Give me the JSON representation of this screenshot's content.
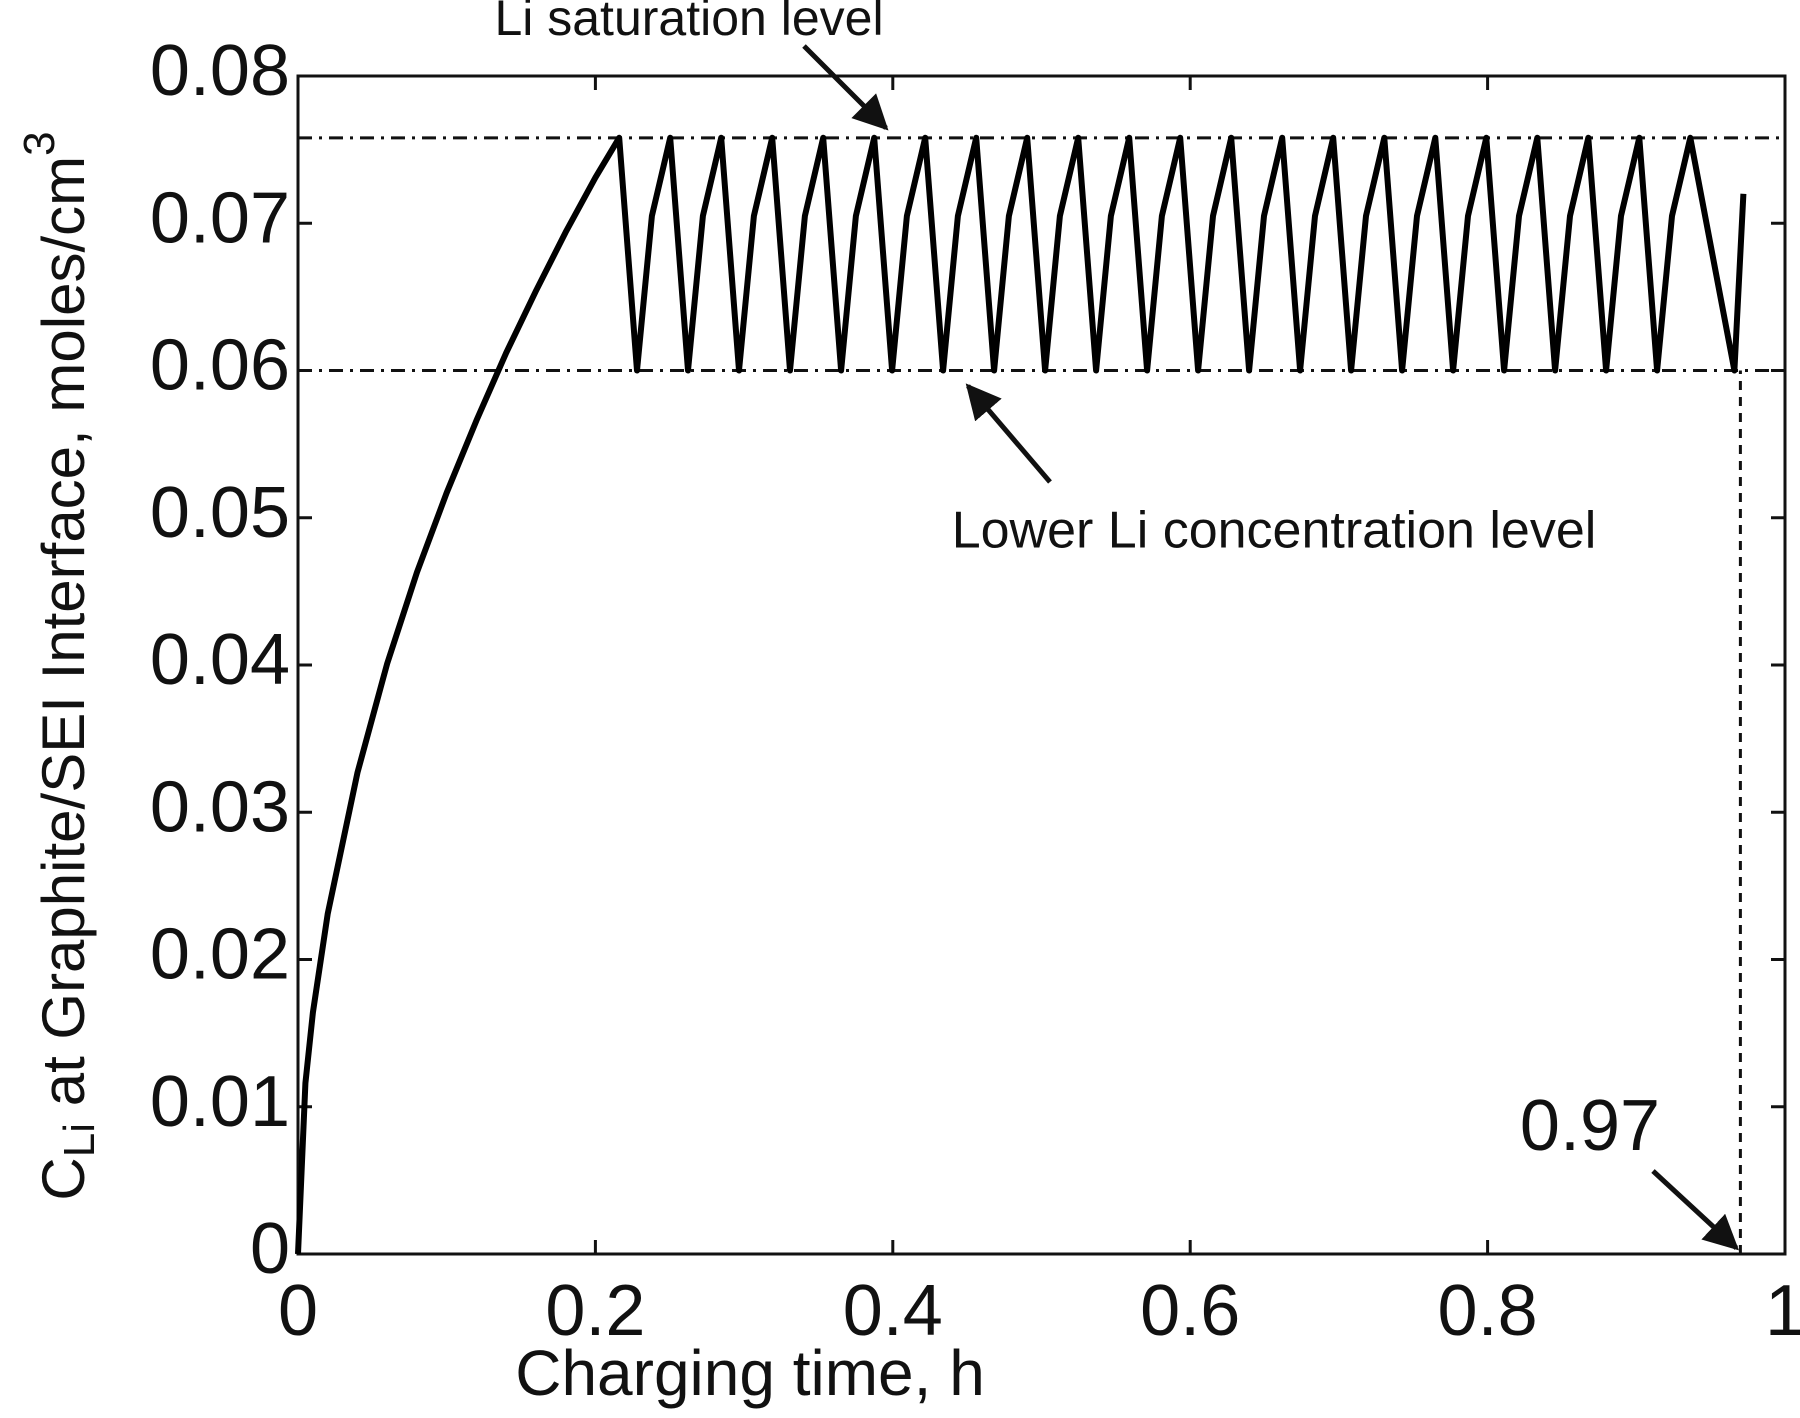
{
  "chart_data": {
    "type": "line",
    "x_label": "Charging time, h",
    "y_label": {
      "main": "C",
      "sub": "Li",
      "rest": " at Graphite/SEI Interface, moles/cm",
      "sup": "3"
    },
    "xlim": [
      0,
      1
    ],
    "xticks": [
      0,
      0.2,
      0.4,
      0.6,
      0.8,
      1
    ],
    "ylim": [
      0,
      0.08
    ],
    "yticks": [
      0,
      0.01,
      0.02,
      0.03,
      0.04,
      0.05,
      0.06,
      0.07,
      0.08
    ],
    "grid": false,
    "series": [
      {
        "color": "#000000",
        "x": [
          0,
          0.005,
          0.01,
          0.02,
          0.04,
          0.06,
          0.08,
          0.1,
          0.12,
          0.14,
          0.16,
          0.18,
          0.2,
          0.216,
          0.228,
          0.238,
          0.2503,
          0.2623,
          0.2723,
          0.2846,
          0.2966,
          0.3066,
          0.3189,
          0.3309,
          0.3409,
          0.3532,
          0.3652,
          0.3752,
          0.3875,
          0.3995,
          0.4095,
          0.4218,
          0.4338,
          0.4438,
          0.4561,
          0.4681,
          0.4781,
          0.4904,
          0.5024,
          0.5124,
          0.5247,
          0.5367,
          0.5467,
          0.559,
          0.571,
          0.581,
          0.5933,
          0.6053,
          0.6153,
          0.6276,
          0.6396,
          0.6496,
          0.6619,
          0.6739,
          0.6839,
          0.6962,
          0.7082,
          0.7182,
          0.7305,
          0.7425,
          0.7525,
          0.7648,
          0.7768,
          0.7868,
          0.7991,
          0.8111,
          0.8211,
          0.8334,
          0.8454,
          0.8554,
          0.8677,
          0.8797,
          0.8897,
          0.902,
          0.914,
          0.924,
          0.9363,
          0.966,
          0.972
        ],
        "values": [
          0,
          0.0116,
          0.0164,
          0.0231,
          0.0327,
          0.0401,
          0.0463,
          0.0517,
          0.0566,
          0.0612,
          0.0654,
          0.0694,
          0.0731,
          0.0758,
          0.06,
          0.0705,
          0.0758,
          0.06,
          0.0705,
          0.0758,
          0.06,
          0.0705,
          0.0758,
          0.06,
          0.0705,
          0.0758,
          0.06,
          0.0705,
          0.0758,
          0.06,
          0.0705,
          0.0758,
          0.06,
          0.0705,
          0.0758,
          0.06,
          0.0705,
          0.0758,
          0.06,
          0.0705,
          0.0758,
          0.06,
          0.0705,
          0.0758,
          0.06,
          0.0705,
          0.0758,
          0.06,
          0.0705,
          0.0758,
          0.06,
          0.0705,
          0.0758,
          0.06,
          0.0705,
          0.0758,
          0.06,
          0.0705,
          0.0758,
          0.06,
          0.0705,
          0.0758,
          0.06,
          0.0705,
          0.0758,
          0.06,
          0.0705,
          0.0758,
          0.06,
          0.0705,
          0.0758,
          0.06,
          0.0705,
          0.0758,
          0.06,
          0.0705,
          0.0758,
          0.06,
          0.072
        ]
      }
    ],
    "hlines": [
      {
        "value": 0.0758,
        "dash": "dashdot"
      },
      {
        "value": 0.06,
        "dash": "dashdot"
      }
    ],
    "vline": {
      "value": 0.97,
      "dash": "dash"
    },
    "annotations": [
      {
        "text": "Li saturation level"
      },
      {
        "text": "Lower Li concentration level"
      },
      {
        "text": "0.97"
      }
    ]
  }
}
